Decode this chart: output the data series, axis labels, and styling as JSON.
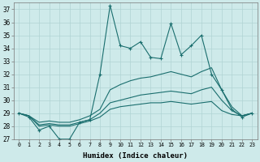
{
  "xlabel": "Humidex (Indice chaleur)",
  "xlim": [
    -0.5,
    23.5
  ],
  "ylim": [
    27,
    37.5
  ],
  "yticks": [
    27,
    28,
    29,
    30,
    31,
    32,
    33,
    34,
    35,
    36,
    37
  ],
  "xticks": [
    0,
    1,
    2,
    3,
    4,
    5,
    6,
    7,
    8,
    9,
    10,
    11,
    12,
    13,
    14,
    15,
    16,
    17,
    18,
    19,
    20,
    21,
    22,
    23
  ],
  "bg_color": "#ceeaea",
  "grid_color": "#b0d4d4",
  "line_color": "#1a6e6e",
  "lines": [
    {
      "marker": true,
      "x": [
        0,
        1,
        2,
        3,
        4,
        5,
        6,
        7,
        8,
        9,
        10,
        11,
        12,
        13,
        14,
        15,
        16,
        17,
        18,
        19,
        20,
        21,
        22,
        23
      ],
      "y": [
        29.0,
        28.7,
        27.7,
        28.0,
        27.0,
        27.0,
        28.3,
        28.5,
        32.0,
        37.3,
        34.2,
        34.0,
        34.5,
        33.3,
        33.2,
        35.9,
        33.5,
        34.2,
        35.0,
        32.0,
        30.8,
        29.3,
        28.7,
        29.0
      ]
    },
    {
      "marker": false,
      "x": [
        0,
        1,
        2,
        3,
        4,
        5,
        6,
        7,
        8,
        9,
        10,
        11,
        12,
        13,
        14,
        15,
        16,
        17,
        18,
        19,
        20,
        21,
        22,
        23
      ],
      "y": [
        29.0,
        28.8,
        28.3,
        28.4,
        28.3,
        28.3,
        28.5,
        28.8,
        29.3,
        30.8,
        31.2,
        31.5,
        31.7,
        31.8,
        32.0,
        32.2,
        32.0,
        31.8,
        32.2,
        32.5,
        30.8,
        29.5,
        28.8,
        29.0
      ]
    },
    {
      "marker": false,
      "x": [
        0,
        1,
        2,
        3,
        4,
        5,
        6,
        7,
        8,
        9,
        10,
        11,
        12,
        13,
        14,
        15,
        16,
        17,
        18,
        19,
        20,
        21,
        22,
        23
      ],
      "y": [
        29.0,
        28.8,
        28.1,
        28.2,
        28.1,
        28.1,
        28.3,
        28.5,
        29.0,
        29.8,
        30.0,
        30.2,
        30.4,
        30.5,
        30.6,
        30.7,
        30.6,
        30.5,
        30.8,
        31.0,
        30.0,
        29.2,
        28.8,
        29.0
      ]
    },
    {
      "marker": false,
      "x": [
        0,
        1,
        2,
        3,
        4,
        5,
        6,
        7,
        8,
        9,
        10,
        11,
        12,
        13,
        14,
        15,
        16,
        17,
        18,
        19,
        20,
        21,
        22,
        23
      ],
      "y": [
        29.0,
        28.8,
        28.0,
        28.1,
        28.0,
        28.0,
        28.2,
        28.4,
        28.7,
        29.3,
        29.5,
        29.6,
        29.7,
        29.8,
        29.8,
        29.9,
        29.8,
        29.7,
        29.8,
        29.9,
        29.2,
        28.9,
        28.8,
        29.0
      ]
    }
  ]
}
